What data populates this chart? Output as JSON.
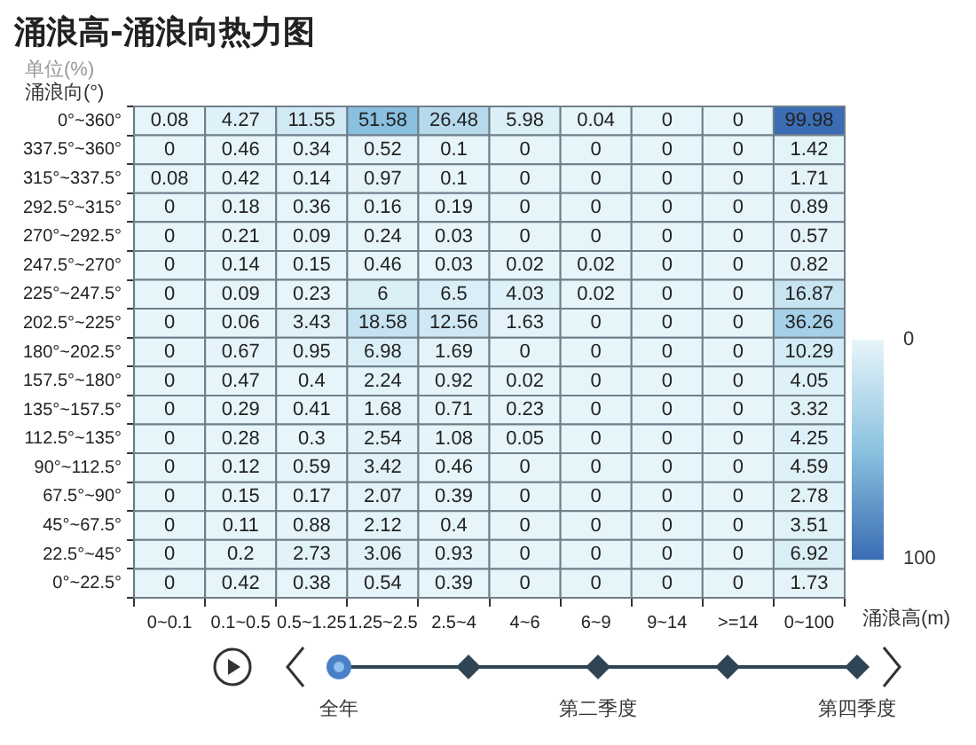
{
  "chart_data": {
    "type": "heatmap",
    "title": "涌浪高-涌浪向热力图",
    "subtitle": "单位(%)",
    "xlabel": "涌浪高(m)",
    "ylabel": "涌浪向(°)",
    "categories": [
      "0~0.1",
      "0.1~0.5",
      "0.5~1.25",
      "1.25~2.5",
      "2.5~4",
      "4~6",
      "6~9",
      "9~14",
      ">=14",
      "0~100"
    ],
    "y_categories": [
      "0°~360°",
      "337.5°~360°",
      "315°~337.5°",
      "292.5°~315°",
      "270°~292.5°",
      "247.5°~270°",
      "225°~247.5°",
      "202.5°~225°",
      "180°~202.5°",
      "157.5°~180°",
      "135°~157.5°",
      "112.5°~135°",
      "90°~112.5°",
      "67.5°~90°",
      "45°~67.5°",
      "22.5°~45°",
      "0°~22.5°"
    ],
    "cells": [
      [
        0.08,
        4.27,
        11.55,
        51.58,
        26.48,
        5.98,
        0.04,
        0,
        0,
        99.98
      ],
      [
        0,
        0.46,
        0.34,
        0.52,
        0.1,
        0,
        0,
        0,
        0,
        1.42
      ],
      [
        0.08,
        0.42,
        0.14,
        0.97,
        0.1,
        0,
        0,
        0,
        0,
        1.71
      ],
      [
        0,
        0.18,
        0.36,
        0.16,
        0.19,
        0,
        0,
        0,
        0,
        0.89
      ],
      [
        0,
        0.21,
        0.09,
        0.24,
        0.03,
        0,
        0,
        0,
        0,
        0.57
      ],
      [
        0,
        0.14,
        0.15,
        0.46,
        0.03,
        0.02,
        0.02,
        0,
        0,
        0.82
      ],
      [
        0,
        0.09,
        0.23,
        6,
        6.5,
        4.03,
        0.02,
        0,
        0,
        16.87
      ],
      [
        0,
        0.06,
        3.43,
        18.58,
        12.56,
        1.63,
        0,
        0,
        0,
        36.26
      ],
      [
        0,
        0.67,
        0.95,
        6.98,
        1.69,
        0,
        0,
        0,
        0,
        10.29
      ],
      [
        0,
        0.47,
        0.4,
        2.24,
        0.92,
        0.02,
        0,
        0,
        0,
        4.05
      ],
      [
        0,
        0.29,
        0.41,
        1.68,
        0.71,
        0.23,
        0,
        0,
        0,
        3.32
      ],
      [
        0,
        0.28,
        0.3,
        2.54,
        1.08,
        0.05,
        0,
        0,
        0,
        4.25
      ],
      [
        0,
        0.12,
        0.59,
        3.42,
        0.46,
        0,
        0,
        0,
        0,
        4.59
      ],
      [
        0,
        0.15,
        0.17,
        2.07,
        0.39,
        0,
        0,
        0,
        0,
        2.78
      ],
      [
        0,
        0.11,
        0.88,
        2.12,
        0.4,
        0,
        0,
        0,
        0,
        3.51
      ],
      [
        0,
        0.2,
        2.73,
        3.06,
        0.93,
        0,
        0,
        0,
        0,
        6.92
      ],
      [
        0,
        0.42,
        0.38,
        0.54,
        0.39,
        0,
        0,
        0,
        0,
        1.73
      ]
    ],
    "data_labels": true,
    "clim": [
      0,
      100
    ],
    "cticks": [
      0,
      100
    ],
    "annotations": [
      "全年",
      "第二季度",
      "第四季度"
    ]
  }
}
